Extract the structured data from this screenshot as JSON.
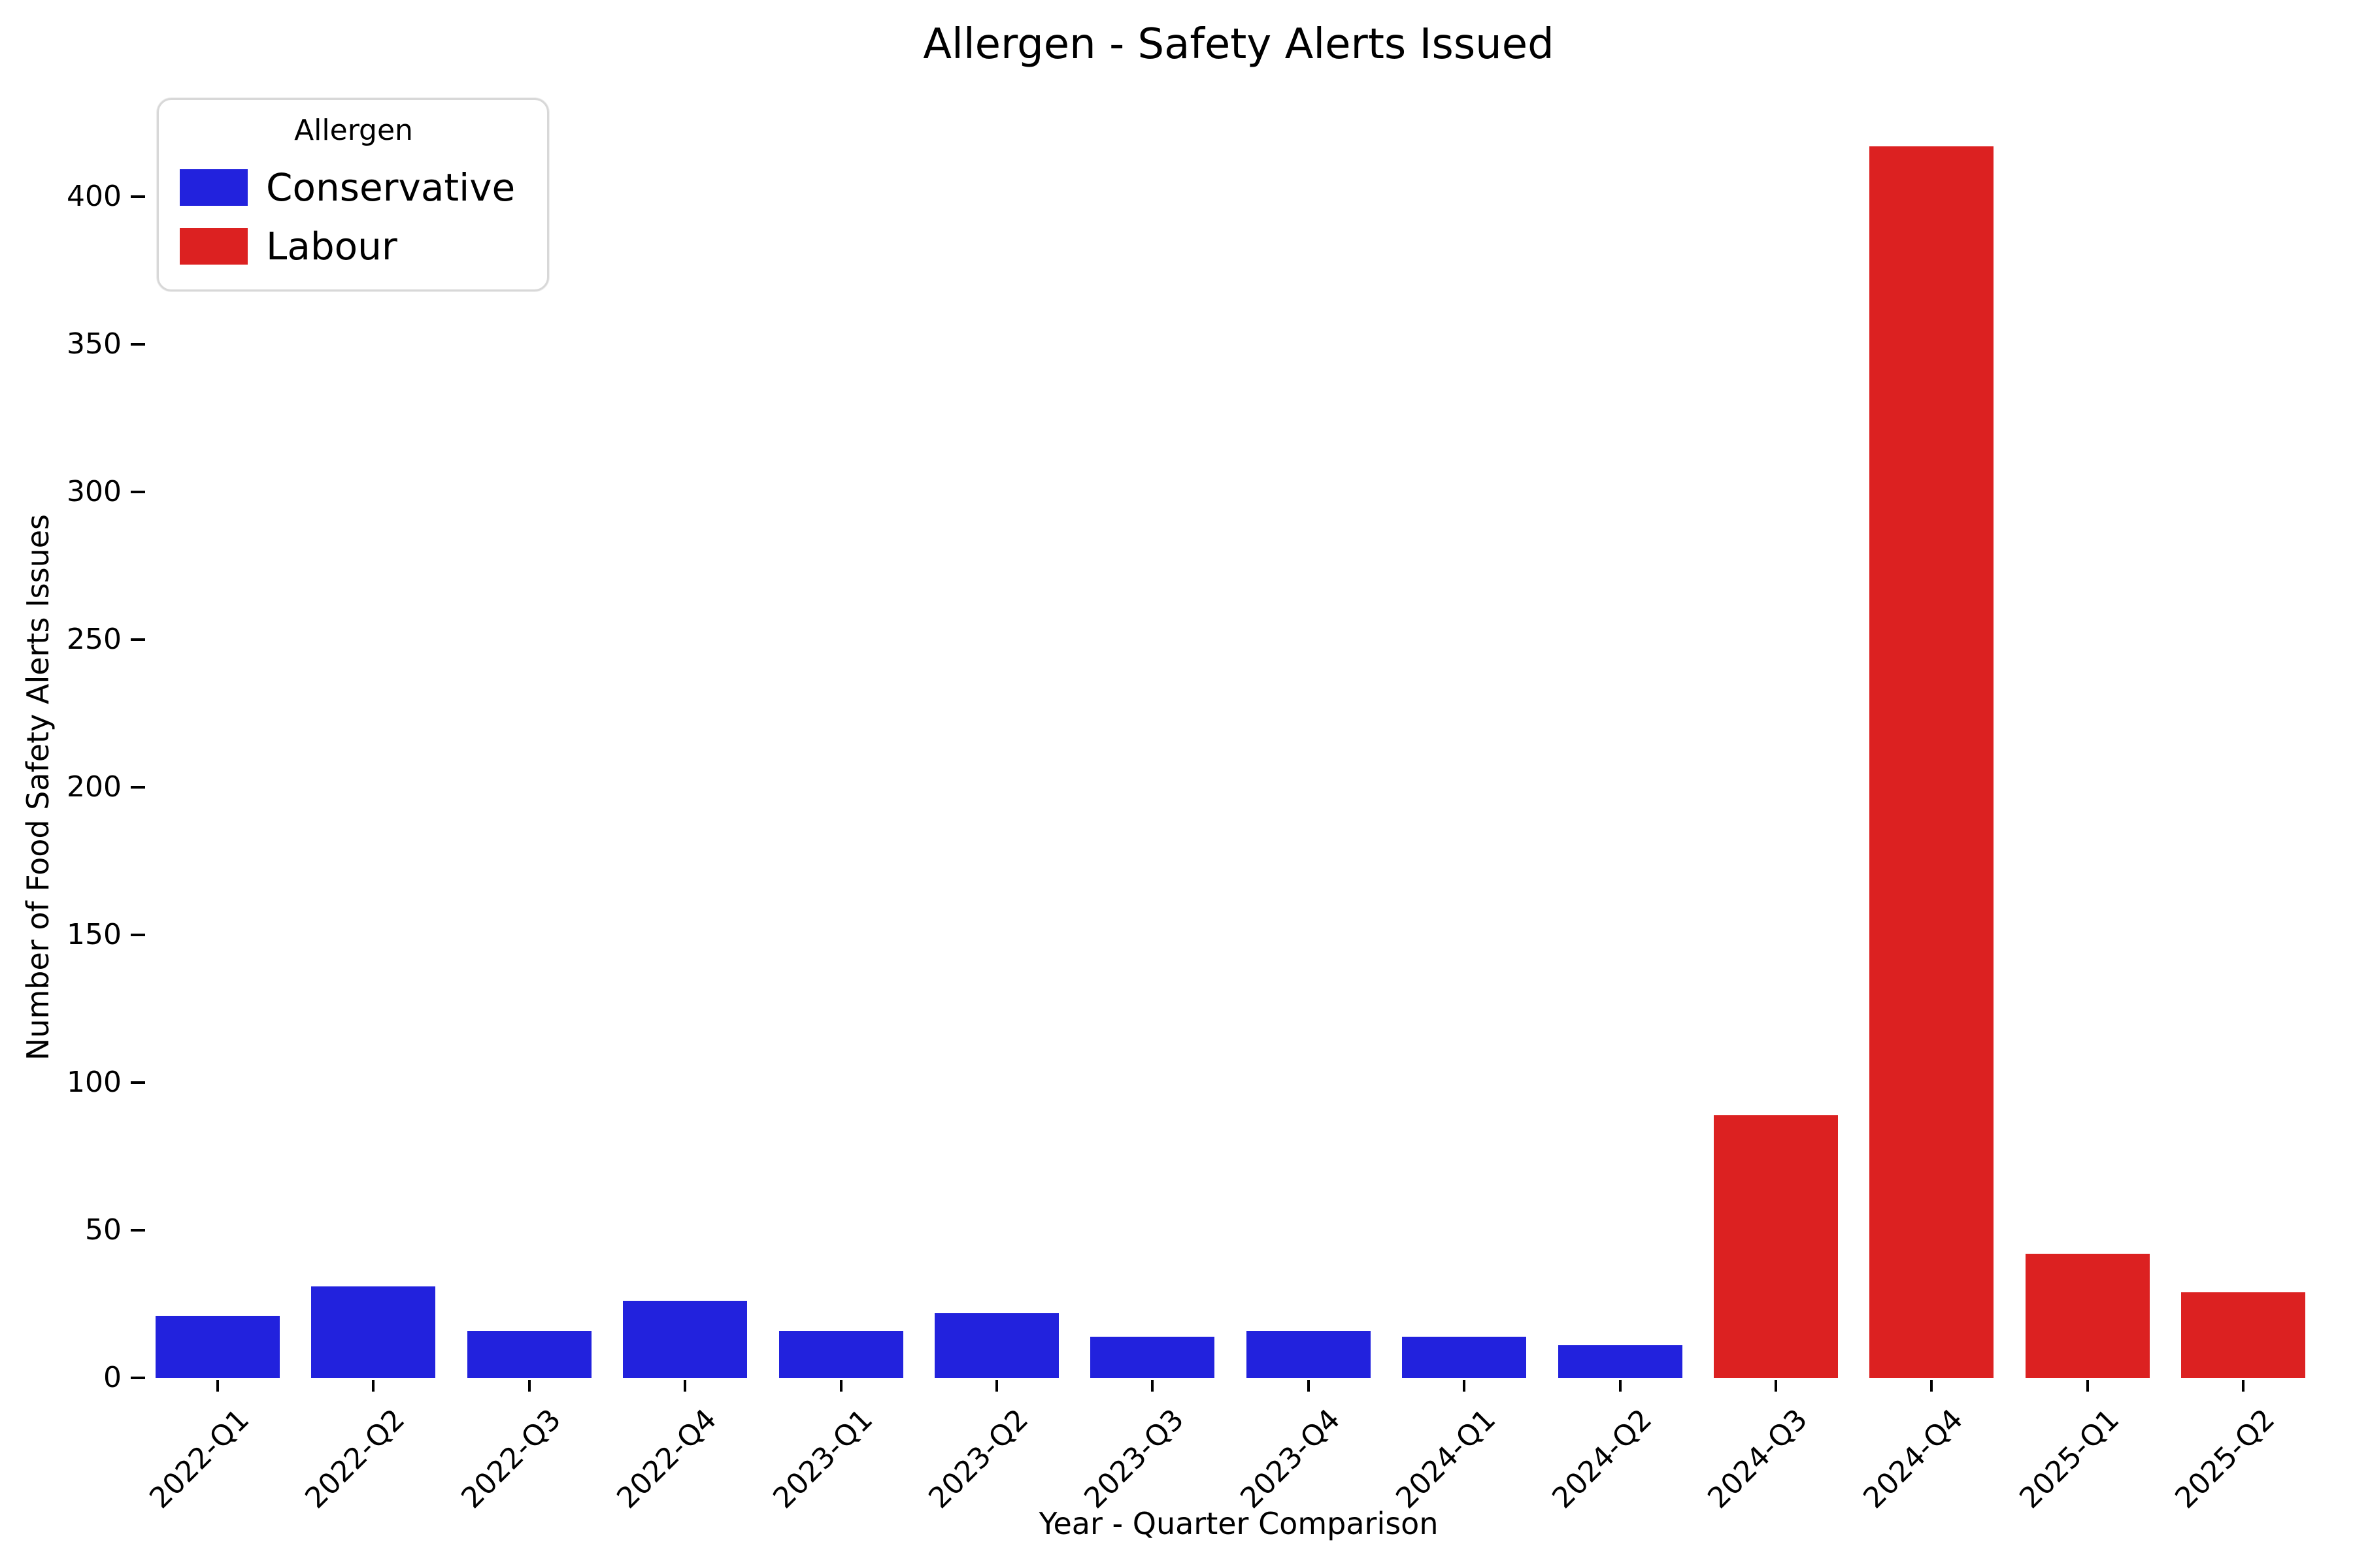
{
  "title": "Allergen - Safety Alerts Issued",
  "colors": {
    "Conservative": "#2222DD",
    "Labour": "#DC2121"
  },
  "legend": {
    "title": "Allergen",
    "entries": [
      {
        "label": "Conservative",
        "color": "#2222DD"
      },
      {
        "label": "Labour",
        "color": "#DC2121"
      }
    ]
  },
  "axes": {
    "x_label": "Year - Quarter Comparison",
    "y_label": "Number of Food Safety Alerts Issues",
    "y_ticks": [
      0,
      50,
      100,
      150,
      200,
      250,
      300,
      350,
      400
    ]
  },
  "chart_data": {
    "type": "bar",
    "title": "Allergen - Safety Alerts Issued",
    "xlabel": "Year - Quarter Comparison",
    "ylabel": "Number of Food Safety Alerts Issues",
    "ylim": [
      0,
      440
    ],
    "grid": false,
    "legend_position": "upper left",
    "categories": [
      "2022-Q1",
      "2022-Q2",
      "2022-Q3",
      "2022-Q4",
      "2023-Q1",
      "2023-Q2",
      "2023-Q3",
      "2023-Q4",
      "2024-Q1",
      "2024-Q2",
      "2024-Q3",
      "2024-Q4",
      "2025-Q1",
      "2025-Q2"
    ],
    "points": [
      {
        "category": "2022-Q1",
        "value": 21,
        "series": "Conservative"
      },
      {
        "category": "2022-Q2",
        "value": 31,
        "series": "Conservative"
      },
      {
        "category": "2022-Q3",
        "value": 16,
        "series": "Conservative"
      },
      {
        "category": "2022-Q4",
        "value": 26,
        "series": "Conservative"
      },
      {
        "category": "2023-Q1",
        "value": 16,
        "series": "Conservative"
      },
      {
        "category": "2023-Q2",
        "value": 22,
        "series": "Conservative"
      },
      {
        "category": "2023-Q3",
        "value": 14,
        "series": "Conservative"
      },
      {
        "category": "2023-Q4",
        "value": 16,
        "series": "Conservative"
      },
      {
        "category": "2024-Q1",
        "value": 14,
        "series": "Conservative"
      },
      {
        "category": "2024-Q2",
        "value": 11,
        "series": "Conservative"
      },
      {
        "category": "2024-Q3",
        "value": 89,
        "series": "Labour"
      },
      {
        "category": "2024-Q4",
        "value": 417,
        "series": "Labour"
      },
      {
        "category": "2025-Q1",
        "value": 42,
        "series": "Labour"
      },
      {
        "category": "2025-Q2",
        "value": 29,
        "series": "Labour"
      }
    ],
    "series": [
      {
        "name": "Conservative",
        "color": "#2222DD",
        "values": [
          21,
          31,
          16,
          26,
          16,
          22,
          14,
          16,
          14,
          11,
          null,
          null,
          null,
          null
        ]
      },
      {
        "name": "Labour",
        "color": "#DC2121",
        "values": [
          null,
          null,
          null,
          null,
          null,
          null,
          null,
          null,
          null,
          null,
          89,
          417,
          42,
          29
        ]
      }
    ]
  }
}
